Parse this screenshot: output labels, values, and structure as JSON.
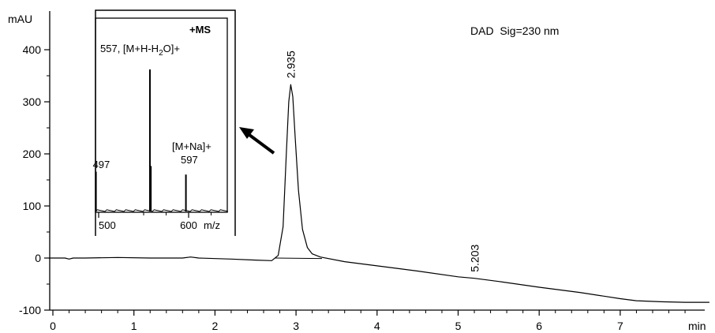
{
  "chart_data": [
    {
      "type": "line",
      "ylabel": "mAU",
      "xlabel": "min",
      "annotation": "DAD  Sig=230 nm",
      "xlim": [
        -0.05,
        8.1
      ],
      "ylim": [
        -100,
        430
      ],
      "x_ticks": [
        0,
        1,
        2,
        3,
        4,
        5,
        6,
        7
      ],
      "x_tick_labels": [
        "0",
        "1",
        "2",
        "3",
        "4",
        "5",
        "6",
        "7"
      ],
      "y_ticks": [
        -100,
        0,
        100,
        200,
        300,
        400
      ],
      "y_tick_labels": [
        "-100",
        "0",
        "100",
        "200",
        "300",
        "400"
      ],
      "series": [
        {
          "x": [
            -0.05,
            0.15,
            0.2,
            0.25,
            0.4,
            0.8,
            1.2,
            1.6,
            1.7,
            1.8,
            2.2,
            2.5,
            2.7,
            2.78,
            2.84,
            2.88,
            2.91,
            2.935,
            2.96,
            2.99,
            3.03,
            3.08,
            3.14,
            3.2,
            3.3,
            3.6,
            4.0,
            4.5,
            5.0,
            5.203,
            5.5,
            6.0,
            6.5,
            7.0,
            7.2,
            7.5,
            7.8,
            8.1
          ],
          "y": [
            0,
            0,
            -2,
            0,
            0,
            1,
            0,
            0,
            2,
            0,
            -2,
            -4,
            -5,
            5,
            60,
            200,
            300,
            333,
            310,
            230,
            130,
            55,
            20,
            8,
            2,
            -7,
            -15,
            -25,
            -36,
            -39,
            -45,
            -56,
            -66,
            -78,
            -82,
            -84,
            -85,
            -85
          ]
        }
      ],
      "peak_labels": [
        {
          "x": 2.935,
          "y": 333,
          "label": "2.935"
        },
        {
          "x": 5.203,
          "y": -39,
          "label": "5.203"
        }
      ]
    },
    {
      "type": "bar",
      "title": "+MS",
      "xlabel": "m/z",
      "xlim": [
        495,
        625
      ],
      "x_ticks": [
        500,
        600
      ],
      "x_tick_labels": [
        "500",
        "600"
      ],
      "peaks": [
        {
          "x": 497,
          "intensity": 28
        },
        {
          "x": 557,
          "intensity": 100
        },
        {
          "x": 558,
          "intensity": 32
        },
        {
          "x": 597,
          "intensity": 26
        }
      ],
      "peak_labels": [
        {
          "x": 497,
          "label": "497"
        },
        {
          "x": 557,
          "label": "557, [M+H-H",
          "sub": "2",
          "label_after_sub": "O]+"
        },
        {
          "x": 597,
          "label": "[M+Na]+",
          "label2": "597"
        }
      ]
    }
  ]
}
